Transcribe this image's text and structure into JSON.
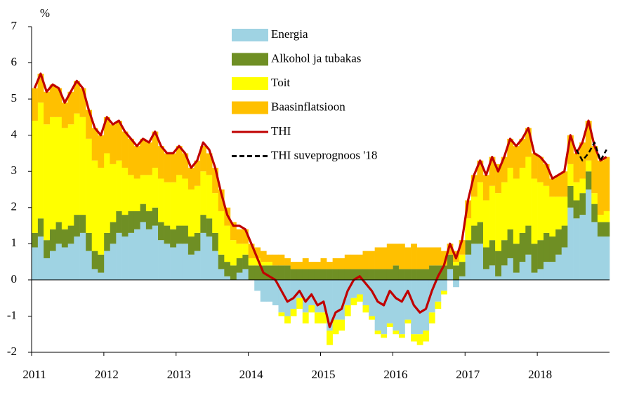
{
  "chart_data": {
    "type": "bar",
    "stacked": true,
    "y_unit_label": "%",
    "categories": [
      "2011",
      null,
      null,
      null,
      null,
      null,
      null,
      null,
      null,
      null,
      null,
      null,
      "2012",
      null,
      null,
      null,
      null,
      null,
      null,
      null,
      null,
      null,
      null,
      null,
      "2013",
      null,
      null,
      null,
      null,
      null,
      null,
      null,
      null,
      null,
      null,
      null,
      "2014",
      null,
      null,
      null,
      null,
      null,
      null,
      null,
      null,
      null,
      null,
      null,
      "2015",
      null,
      null,
      null,
      null,
      null,
      null,
      null,
      null,
      null,
      null,
      null,
      "2016",
      null,
      null,
      null,
      null,
      null,
      null,
      null,
      null,
      null,
      null,
      null,
      "2017",
      null,
      null,
      null,
      null,
      null,
      null,
      null,
      null,
      null,
      null,
      null,
      "2018",
      null,
      null,
      null,
      null,
      null,
      null,
      null,
      null,
      null,
      null,
      null
    ],
    "ylim": [
      -2,
      7
    ],
    "yticks": [
      -2,
      -1,
      0,
      1,
      2,
      3,
      4,
      5,
      6,
      7
    ],
    "legend": "top",
    "series": [
      {
        "name": "Energia",
        "type": "bar",
        "color": "#9fd3e3",
        "values": [
          0.9,
          1.2,
          0.6,
          0.8,
          1.0,
          0.9,
          1.0,
          1.2,
          1.3,
          0.8,
          0.3,
          0.2,
          0.8,
          1.0,
          1.3,
          1.2,
          1.3,
          1.4,
          1.6,
          1.4,
          1.5,
          1.1,
          1.0,
          0.9,
          1.0,
          1.0,
          0.7,
          0.8,
          1.3,
          1.2,
          0.8,
          0.3,
          0.1,
          0.0,
          0.2,
          0.3,
          0.0,
          -0.3,
          -0.6,
          -0.6,
          -0.7,
          -0.9,
          -1.0,
          -0.8,
          -0.5,
          -0.9,
          -0.7,
          -0.9,
          -0.9,
          -1.4,
          -1.1,
          -1.1,
          -0.7,
          -0.5,
          -0.4,
          -0.7,
          -1.0,
          -1.4,
          -1.5,
          -1.2,
          -1.4,
          -1.5,
          -1.1,
          -1.5,
          -1.5,
          -1.4,
          -0.9,
          -0.6,
          -0.3,
          0.3,
          -0.2,
          0.1,
          0.7,
          1.0,
          1.0,
          0.3,
          0.4,
          0.1,
          0.4,
          0.6,
          0.2,
          0.5,
          0.7,
          0.2,
          0.3,
          0.5,
          0.5,
          0.7,
          0.9,
          2.0,
          1.7,
          1.8,
          2.5,
          1.6,
          1.2,
          1.2
        ]
      },
      {
        "name": "Alkohol ja tubakas",
        "type": "bar",
        "color": "#6f8f24",
        "values": [
          0.4,
          0.5,
          0.5,
          0.6,
          0.6,
          0.5,
          0.5,
          0.6,
          0.5,
          0.5,
          0.5,
          0.5,
          0.5,
          0.6,
          0.6,
          0.6,
          0.6,
          0.5,
          0.5,
          0.5,
          0.5,
          0.5,
          0.5,
          0.5,
          0.5,
          0.5,
          0.5,
          0.5,
          0.5,
          0.5,
          0.5,
          0.4,
          0.4,
          0.4,
          0.4,
          0.4,
          0.4,
          0.4,
          0.4,
          0.4,
          0.4,
          0.4,
          0.4,
          0.3,
          0.3,
          0.3,
          0.3,
          0.3,
          0.3,
          0.3,
          0.3,
          0.3,
          0.3,
          0.3,
          0.3,
          0.3,
          0.3,
          0.3,
          0.3,
          0.3,
          0.4,
          0.3,
          0.3,
          0.3,
          0.3,
          0.3,
          0.4,
          0.4,
          0.4,
          0.4,
          0.4,
          0.4,
          0.4,
          0.5,
          0.6,
          0.6,
          0.7,
          0.7,
          0.7,
          0.8,
          0.8,
          0.8,
          0.8,
          0.8,
          0.8,
          0.8,
          0.7,
          0.7,
          0.6,
          0.6,
          0.5,
          0.6,
          0.5,
          0.5,
          0.4,
          0.4
        ]
      },
      {
        "name": "Toit",
        "type": "bar",
        "color": "#ffff00",
        "values": [
          3.1,
          3.2,
          3.2,
          3.1,
          2.9,
          2.8,
          2.8,
          2.8,
          2.7,
          2.6,
          2.5,
          2.4,
          2.2,
          1.6,
          1.4,
          1.3,
          1.0,
          0.9,
          0.8,
          1.0,
          1.1,
          1.2,
          1.2,
          1.3,
          1.4,
          1.3,
          1.3,
          1.3,
          1.2,
          1.2,
          1.1,
          1.2,
          1.0,
          0.7,
          0.4,
          0.3,
          0.2,
          0.2,
          0.1,
          0.1,
          0.0,
          -0.1,
          -0.2,
          -0.2,
          -0.3,
          -0.3,
          -0.2,
          -0.3,
          -0.3,
          -0.4,
          -0.4,
          -0.3,
          -0.3,
          -0.2,
          -0.2,
          -0.2,
          -0.1,
          -0.1,
          -0.1,
          -0.1,
          -0.1,
          -0.1,
          -0.1,
          -0.2,
          -0.3,
          -0.3,
          -0.3,
          -0.2,
          -0.1,
          0.0,
          0.1,
          0.2,
          0.6,
          0.8,
          1.1,
          1.3,
          1.5,
          1.6,
          1.6,
          1.7,
          1.8,
          1.8,
          1.9,
          1.8,
          1.6,
          1.3,
          1.1,
          0.9,
          0.8,
          0.6,
          0.5,
          0.4,
          0.3,
          0.3,
          0.2,
          0.3
        ]
      },
      {
        "name": "Baasinflatsioon",
        "type": "bar",
        "color": "#ffc000",
        "values": [
          0.9,
          0.8,
          0.9,
          0.9,
          0.8,
          0.7,
          0.9,
          0.9,
          0.8,
          0.8,
          0.9,
          0.9,
          1.0,
          1.1,
          1.1,
          1.0,
          1.0,
          0.9,
          1.0,
          0.9,
          1.0,
          0.9,
          0.8,
          0.8,
          0.8,
          0.7,
          0.6,
          0.7,
          0.7,
          0.6,
          0.7,
          0.6,
          0.5,
          0.5,
          0.4,
          0.4,
          0.4,
          0.3,
          0.3,
          0.2,
          0.3,
          0.3,
          0.2,
          0.2,
          0.2,
          0.3,
          0.2,
          0.2,
          0.3,
          0.2,
          0.3,
          0.3,
          0.4,
          0.4,
          0.4,
          0.5,
          0.5,
          0.6,
          0.6,
          0.7,
          0.6,
          0.7,
          0.6,
          0.7,
          0.6,
          0.6,
          0.5,
          0.5,
          0.4,
          0.3,
          0.3,
          0.4,
          0.5,
          0.6,
          0.6,
          0.7,
          0.8,
          0.8,
          0.7,
          0.8,
          0.9,
          0.8,
          0.8,
          0.7,
          0.7,
          0.6,
          0.5,
          0.6,
          0.7,
          0.8,
          0.8,
          1.0,
          1.1,
          1.3,
          1.5,
          1.5
        ]
      },
      {
        "name": "THI",
        "type": "line",
        "color": "#c00000",
        "values": [
          5.3,
          5.7,
          5.2,
          5.4,
          5.3,
          4.9,
          5.2,
          5.5,
          5.3,
          4.7,
          4.2,
          4.0,
          4.5,
          4.3,
          4.4,
          4.1,
          3.9,
          3.7,
          3.9,
          3.8,
          4.1,
          3.7,
          3.5,
          3.5,
          3.7,
          3.5,
          3.1,
          3.3,
          3.8,
          3.6,
          3.1,
          2.4,
          1.8,
          1.5,
          1.5,
          1.4,
          1.0,
          0.6,
          0.2,
          0.1,
          0.0,
          -0.3,
          -0.6,
          -0.5,
          -0.3,
          -0.6,
          -0.4,
          -0.7,
          -0.6,
          -1.3,
          -0.9,
          -0.8,
          -0.3,
          0.0,
          0.1,
          -0.1,
          -0.3,
          -0.6,
          -0.7,
          -0.3,
          -0.5,
          -0.6,
          -0.3,
          -0.7,
          -0.9,
          -0.8,
          -0.3,
          0.1,
          0.4,
          1.0,
          0.6,
          1.1,
          2.2,
          2.9,
          3.3,
          2.9,
          3.4,
          3.0,
          3.4,
          3.9,
          3.7,
          3.9,
          4.2,
          3.5,
          3.4,
          3.2,
          2.8,
          2.9,
          3.0,
          4.0,
          3.5,
          3.8,
          4.4,
          3.7,
          3.3,
          3.4
        ]
      },
      {
        "name": "THI suveprognoos '18",
        "type": "line",
        "dashed": true,
        "color": "#000000",
        "values": [
          null,
          null,
          null,
          null,
          null,
          null,
          null,
          null,
          null,
          null,
          null,
          null,
          null,
          null,
          null,
          null,
          null,
          null,
          null,
          null,
          null,
          null,
          null,
          null,
          null,
          null,
          null,
          null,
          null,
          null,
          null,
          null,
          null,
          null,
          null,
          null,
          null,
          null,
          null,
          null,
          null,
          null,
          null,
          null,
          null,
          null,
          null,
          null,
          null,
          null,
          null,
          null,
          null,
          null,
          null,
          null,
          null,
          null,
          null,
          null,
          null,
          null,
          null,
          null,
          null,
          null,
          null,
          null,
          null,
          null,
          null,
          null,
          null,
          null,
          null,
          null,
          null,
          null,
          null,
          null,
          null,
          null,
          null,
          null,
          null,
          null,
          null,
          null,
          null,
          null,
          3.6,
          3.3,
          3.5,
          3.8,
          3.3,
          3.6
        ]
      }
    ]
  }
}
